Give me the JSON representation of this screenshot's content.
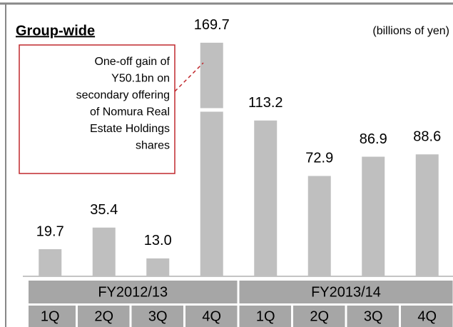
{
  "chart_data": {
    "type": "bar",
    "title": "Group-wide",
    "subtitle": "(billions of yen)",
    "categories": [
      "1Q",
      "2Q",
      "3Q",
      "4Q",
      "1Q",
      "2Q",
      "3Q",
      "4Q"
    ],
    "group_labels": [
      "FY2012/13",
      "FY2013/14"
    ],
    "values": [
      19.7,
      35.4,
      13.0,
      169.7,
      113.2,
      72.9,
      86.9,
      88.6
    ],
    "value_labels": [
      "19.7",
      "35.4",
      "13.0",
      "169.7",
      "113.2",
      "72.9",
      "86.9",
      "88.6"
    ],
    "one_off_gain": 50.1,
    "annotation": [
      "One-off gain  of",
      "Y50.1bn on",
      "secondary offering",
      "of Nomura Real",
      "Estate Holdings",
      "shares"
    ],
    "color": "#bfbfbf",
    "annotation_color": "#c0282d",
    "table_color": "#a6a6a6",
    "ylim": [
      0,
      180
    ]
  }
}
